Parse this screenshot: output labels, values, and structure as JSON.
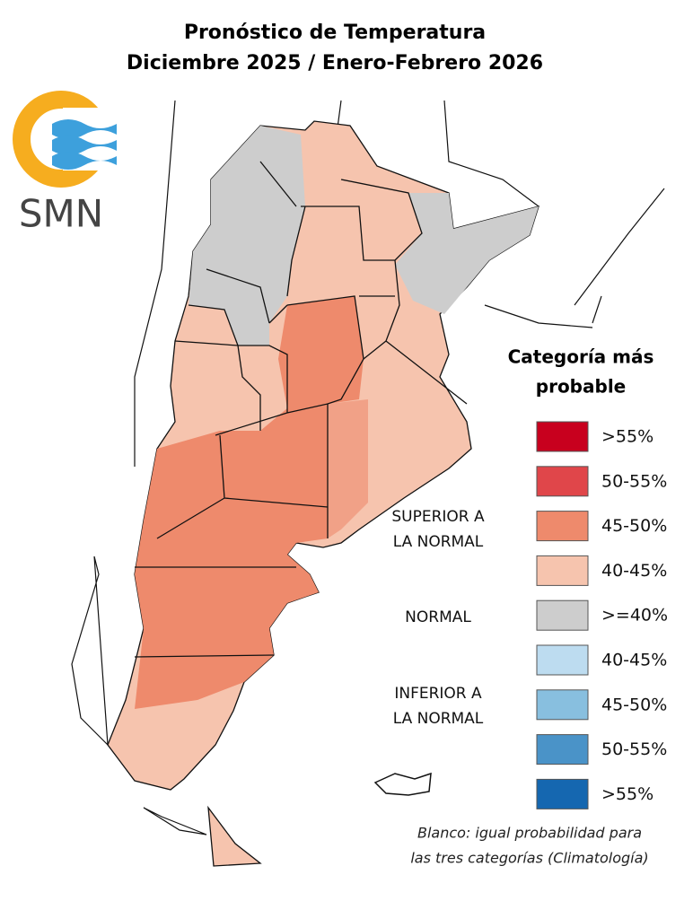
{
  "header": {
    "title": [
      "Pronóstico de Temperatura",
      "Diciembre 2025 / Enero-Febrero 2026"
    ]
  },
  "logo": {
    "text": "SMN"
  },
  "legend": {
    "title": [
      "Categoría más",
      "probable"
    ],
    "groups": [
      {
        "label": [
          "SUPERIOR A",
          "LA NORMAL"
        ]
      },
      {
        "label": [
          "NORMAL"
        ]
      },
      {
        "label": [
          "INFERIOR A",
          "LA NORMAL"
        ]
      }
    ],
    "items": [
      {
        "label": ">55%",
        "color": "#c8001e"
      },
      {
        "label": "50-55%",
        "color": "#e0464a"
      },
      {
        "label": "45-50%",
        "color": "#ee8a6c"
      },
      {
        "label": "40-45%",
        "color": "#f6c4ae"
      },
      {
        "label": ">=40%",
        "color": "#cdcdcd"
      },
      {
        "label": "40-45%",
        "color": "#bddcf0"
      },
      {
        "label": "45-50%",
        "color": "#88bfdf"
      },
      {
        "label": "50-55%",
        "color": "#4a93c8"
      },
      {
        "label": ">55%",
        "color": "#1567b0"
      }
    ]
  },
  "note": [
    "Blanco: igual probabilidad para",
    "las tres categorías (Climatología)"
  ]
}
